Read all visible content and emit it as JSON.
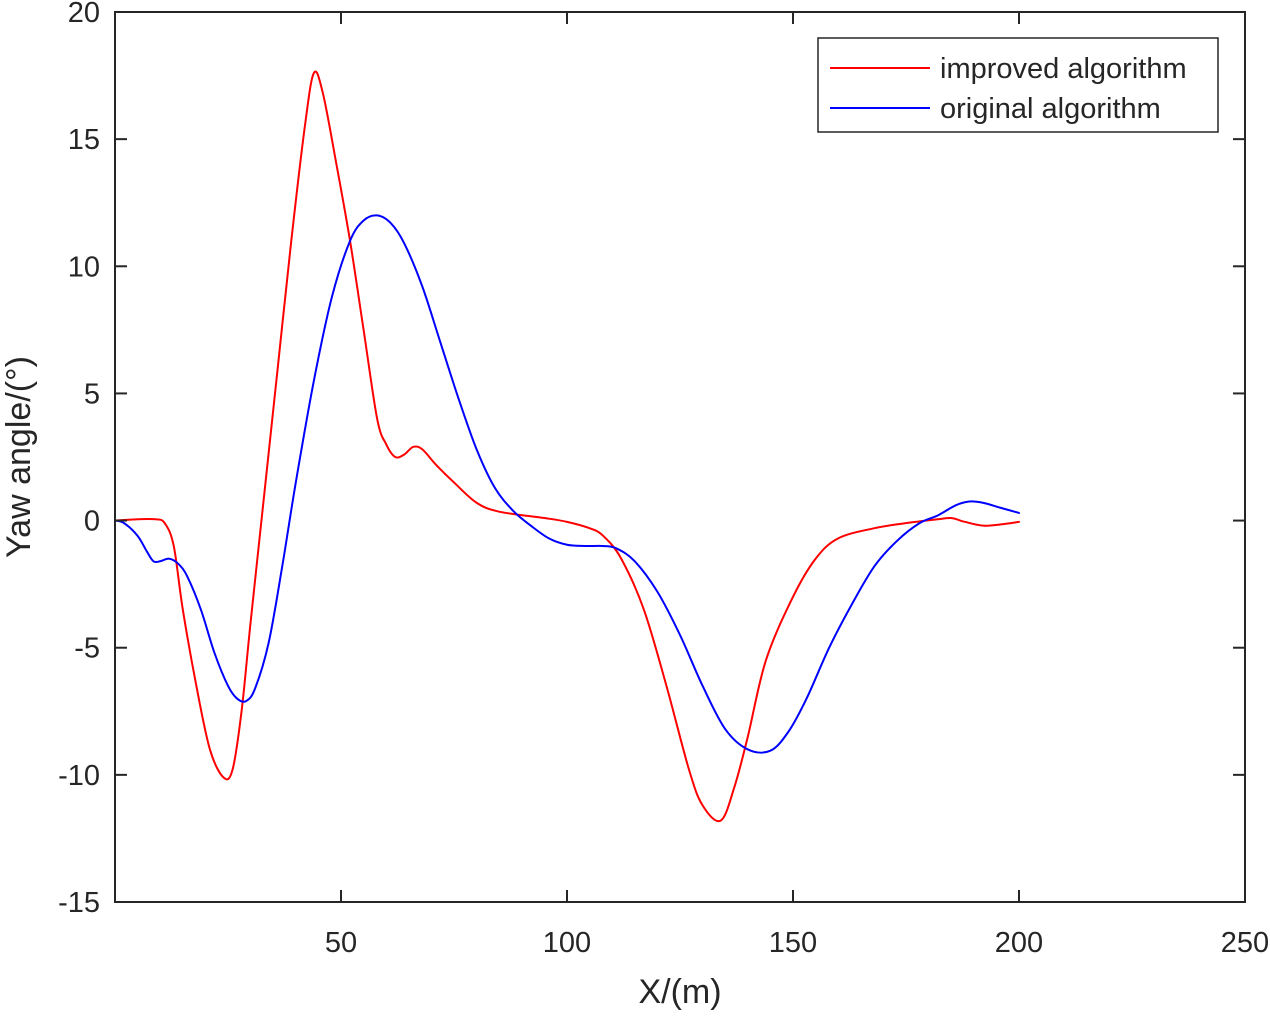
{
  "chart_data": {
    "type": "line",
    "title": "",
    "xlabel": "X/(m)",
    "ylabel": "Yaw angle/(°)",
    "xlim": [
      0,
      250
    ],
    "ylim": [
      -15,
      20
    ],
    "xticks": [
      50,
      100,
      150,
      200,
      250
    ],
    "yticks": [
      -15,
      -10,
      -5,
      0,
      5,
      10,
      15,
      20
    ],
    "xtick_labels": [
      "50",
      "100",
      "150",
      "200",
      "250"
    ],
    "ytick_labels": [
      "-15",
      "-10",
      "-5",
      "0",
      "5",
      "10",
      "15",
      "20"
    ],
    "grid": false,
    "box": true,
    "legend_position": "top-right",
    "series": [
      {
        "name": "improved algorithm",
        "color": "#ff0000",
        "points": [
          [
            0,
            0
          ],
          [
            5,
            0.05
          ],
          [
            9,
            0.05
          ],
          [
            11,
            -0.1
          ],
          [
            13,
            -1
          ],
          [
            15,
            -3.5
          ],
          [
            18,
            -6.5
          ],
          [
            21,
            -9
          ],
          [
            24,
            -10.1
          ],
          [
            26,
            -9.8
          ],
          [
            28,
            -7.5
          ],
          [
            30,
            -4
          ],
          [
            33,
            1
          ],
          [
            36,
            6
          ],
          [
            39,
            11
          ],
          [
            42,
            15.5
          ],
          [
            44,
            17.6
          ],
          [
            46,
            16.8
          ],
          [
            49,
            14
          ],
          [
            52,
            11
          ],
          [
            55,
            7.5
          ],
          [
            58,
            4
          ],
          [
            60,
            3
          ],
          [
            62,
            2.5
          ],
          [
            64,
            2.6
          ],
          [
            66,
            2.9
          ],
          [
            68,
            2.8
          ],
          [
            71,
            2.2
          ],
          [
            75,
            1.5
          ],
          [
            80,
            0.7
          ],
          [
            85,
            0.35
          ],
          [
            95,
            0.1
          ],
          [
            100,
            -0.05
          ],
          [
            105,
            -0.3
          ],
          [
            108,
            -0.6
          ],
          [
            112,
            -1.5
          ],
          [
            117,
            -3.5
          ],
          [
            122,
            -6.5
          ],
          [
            127,
            -9.8
          ],
          [
            130,
            -11.2
          ],
          [
            134,
            -11.8
          ],
          [
            137,
            -10.5
          ],
          [
            140,
            -8.5
          ],
          [
            144,
            -5.5
          ],
          [
            150,
            -3
          ],
          [
            155,
            -1.5
          ],
          [
            160,
            -0.7
          ],
          [
            168,
            -0.3
          ],
          [
            175,
            -0.1
          ],
          [
            182,
            0.05
          ],
          [
            185,
            0.1
          ],
          [
            188,
            -0.05
          ],
          [
            192,
            -0.2
          ],
          [
            196,
            -0.15
          ],
          [
            200,
            -0.05
          ]
        ]
      },
      {
        "name": "original algorithm",
        "color": "#0000ff",
        "points": [
          [
            0,
            0
          ],
          [
            2,
            -0.1
          ],
          [
            5,
            -0.6
          ],
          [
            7,
            -1.2
          ],
          [
            8.5,
            -1.6
          ],
          [
            10,
            -1.6
          ],
          [
            12,
            -1.5
          ],
          [
            14,
            -1.7
          ],
          [
            16,
            -2.2
          ],
          [
            19,
            -3.5
          ],
          [
            22,
            -5.2
          ],
          [
            25,
            -6.5
          ],
          [
            27,
            -7.0
          ],
          [
            29,
            -7.1
          ],
          [
            31,
            -6.6
          ],
          [
            34,
            -4.8
          ],
          [
            37,
            -1.8
          ],
          [
            40,
            1.5
          ],
          [
            44,
            5.5
          ],
          [
            48,
            8.8
          ],
          [
            52,
            11
          ],
          [
            55,
            11.8
          ],
          [
            58,
            12
          ],
          [
            61,
            11.7
          ],
          [
            64,
            10.9
          ],
          [
            68,
            9.2
          ],
          [
            72,
            7
          ],
          [
            76,
            4.8
          ],
          [
            80,
            2.8
          ],
          [
            84,
            1.3
          ],
          [
            88,
            0.4
          ],
          [
            92,
            -0.2
          ],
          [
            96,
            -0.7
          ],
          [
            100,
            -0.95
          ],
          [
            104,
            -1
          ],
          [
            108,
            -1
          ],
          [
            111,
            -1.1
          ],
          [
            115,
            -1.6
          ],
          [
            120,
            -2.8
          ],
          [
            125,
            -4.5
          ],
          [
            130,
            -6.5
          ],
          [
            135,
            -8.2
          ],
          [
            140,
            -9
          ],
          [
            145,
            -9.05
          ],
          [
            149,
            -8.3
          ],
          [
            153,
            -7
          ],
          [
            158,
            -5
          ],
          [
            163,
            -3.3
          ],
          [
            168,
            -1.8
          ],
          [
            173,
            -0.8
          ],
          [
            178,
            -0.1
          ],
          [
            182,
            0.2
          ],
          [
            186,
            0.6
          ],
          [
            189,
            0.75
          ],
          [
            192,
            0.7
          ],
          [
            196,
            0.5
          ],
          [
            200,
            0.3
          ]
        ]
      }
    ]
  }
}
